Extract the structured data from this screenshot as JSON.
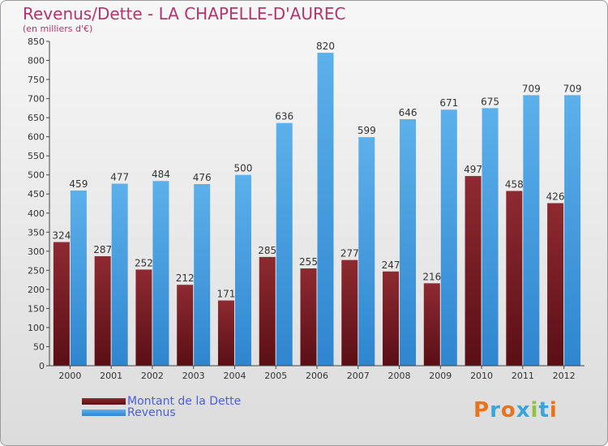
{
  "title": "Revenus/Dette - LA CHAPELLE-D'AUREC",
  "subtitle": "(en milliers d'€)",
  "logo_text": "Proxiti",
  "chart_data": {
    "type": "bar",
    "title": "Revenus/Dette - LA CHAPELLE-D'AUREC",
    "subtitle": "(en milliers d'€)",
    "categories": [
      "2000",
      "2001",
      "2002",
      "2003",
      "2004",
      "2005",
      "2006",
      "2007",
      "2008",
      "2009",
      "2010",
      "2011",
      "2012"
    ],
    "series": [
      {
        "name": "Montant de la Dette",
        "color": "#7a1c22",
        "values": [
          324,
          287,
          252,
          212,
          171,
          285,
          255,
          277,
          247,
          216,
          497,
          458,
          426
        ]
      },
      {
        "name": "Revenus",
        "color": "#4aa3e6",
        "values": [
          459,
          477,
          484,
          476,
          500,
          636,
          820,
          599,
          646,
          671,
          675,
          709,
          709
        ]
      }
    ],
    "ylim": [
      0,
      850
    ],
    "ytick_step": 50,
    "grid": false,
    "legend_position": "bottom-left"
  }
}
